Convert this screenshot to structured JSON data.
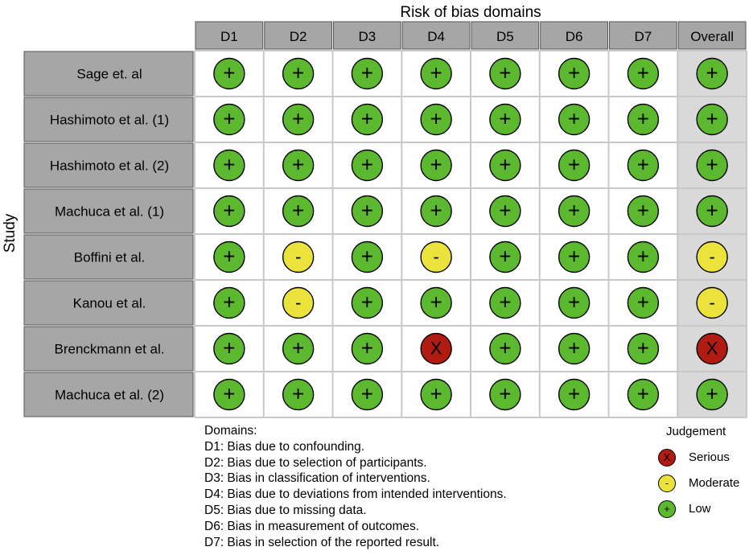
{
  "chart_data": {
    "type": "table",
    "title": "Risk of bias domains",
    "ylabel": "Study",
    "columns": [
      "D1",
      "D2",
      "D3",
      "D4",
      "D5",
      "D6",
      "D7",
      "Overall"
    ],
    "rows": [
      {
        "study": "Sage et. al",
        "judgements": [
          "+",
          "+",
          "+",
          "+",
          "+",
          "+",
          "+",
          "+"
        ]
      },
      {
        "study": "Hashimoto et al. (1)",
        "judgements": [
          "+",
          "+",
          "+",
          "+",
          "+",
          "+",
          "+",
          "+"
        ]
      },
      {
        "study": "Hashimoto et al. (2)",
        "judgements": [
          "+",
          "+",
          "+",
          "+",
          "+",
          "+",
          "+",
          "+"
        ]
      },
      {
        "study": "Machuca et al. (1)",
        "judgements": [
          "+",
          "+",
          "+",
          "+",
          "+",
          "+",
          "+",
          "+"
        ]
      },
      {
        "study": "Boffini et al.",
        "judgements": [
          "+",
          "-",
          "+",
          "-",
          "+",
          "+",
          "+",
          "-"
        ]
      },
      {
        "study": "Kanou et al.",
        "judgements": [
          "+",
          "-",
          "+",
          "+",
          "+",
          "+",
          "+",
          "-"
        ]
      },
      {
        "study": "Brenckmann et al.",
        "judgements": [
          "+",
          "+",
          "+",
          "X",
          "+",
          "+",
          "+",
          "X"
        ]
      },
      {
        "study": "Machuca et al. (2)",
        "judgements": [
          "+",
          "+",
          "+",
          "+",
          "+",
          "+",
          "+",
          "+"
        ]
      }
    ]
  },
  "judgement_colors": {
    "+": "#5cb82e",
    "-": "#ebe33c",
    "X": "#b01b12"
  },
  "domains": {
    "heading": "Domains:",
    "items": [
      "D1: Bias due to confounding.",
      "D2: Bias due to selection of participants.",
      "D3: Bias in classification of interventions.",
      "D4: Bias due to deviations from intended interventions.",
      "D5: Bias due to missing data.",
      "D6: Bias in measurement of outcomes.",
      "D7: Bias in selection of the reported result."
    ]
  },
  "judgement_legend": {
    "title": "Judgement",
    "items": [
      {
        "symbol": "X",
        "label": "Serious"
      },
      {
        "symbol": "-",
        "label": "Moderate"
      },
      {
        "symbol": "+",
        "label": "Low"
      }
    ]
  }
}
